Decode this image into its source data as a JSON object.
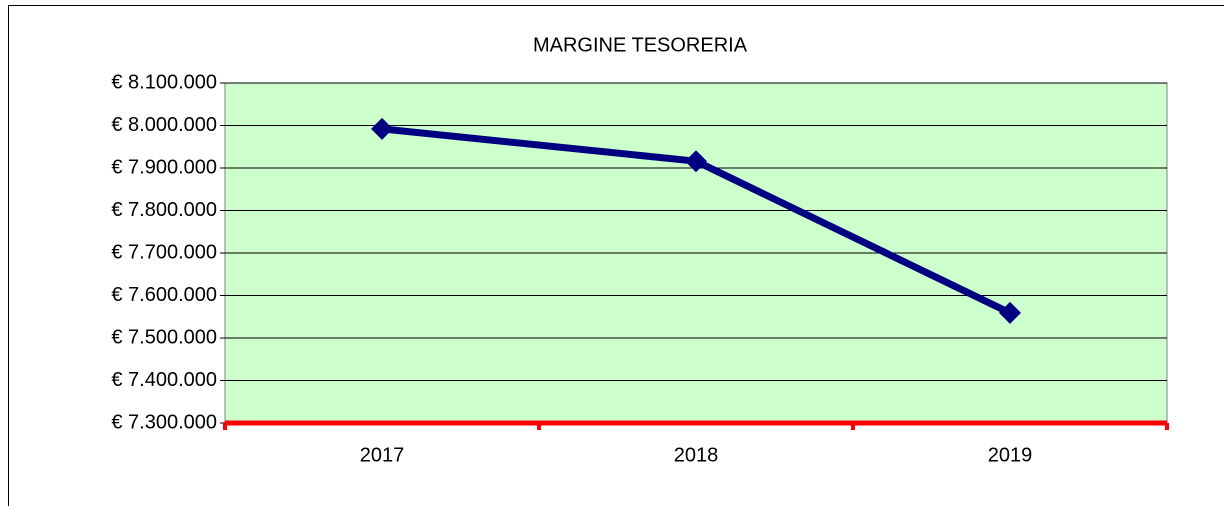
{
  "chart_data": {
    "type": "line",
    "title": "MARGINE TESORERIA",
    "categories": [
      "2017",
      "2018",
      "2019"
    ],
    "series": [
      {
        "name": "MARGINE TESORERIA",
        "color": "#000080",
        "values": [
          7992000,
          7916000,
          7559000
        ]
      }
    ],
    "ylim": [
      7300000,
      8100000
    ],
    "yticks": [
      {
        "value": 7300000,
        "label": "€ 7.300.000"
      },
      {
        "value": 7400000,
        "label": "€ 7.400.000"
      },
      {
        "value": 7500000,
        "label": "€ 7.500.000"
      },
      {
        "value": 7600000,
        "label": "€ 7.600.000"
      },
      {
        "value": 7700000,
        "label": "€ 7.700.000"
      },
      {
        "value": 7800000,
        "label": "€ 7.800.000"
      },
      {
        "value": 7900000,
        "label": "€ 7.900.000"
      },
      {
        "value": 8000000,
        "label": "€ 8.000.000"
      },
      {
        "value": 8100000,
        "label": "€ 8.100.000"
      }
    ],
    "grid": true,
    "plot_background": "#ccffcc",
    "x_axis_color": "#ff0000"
  }
}
